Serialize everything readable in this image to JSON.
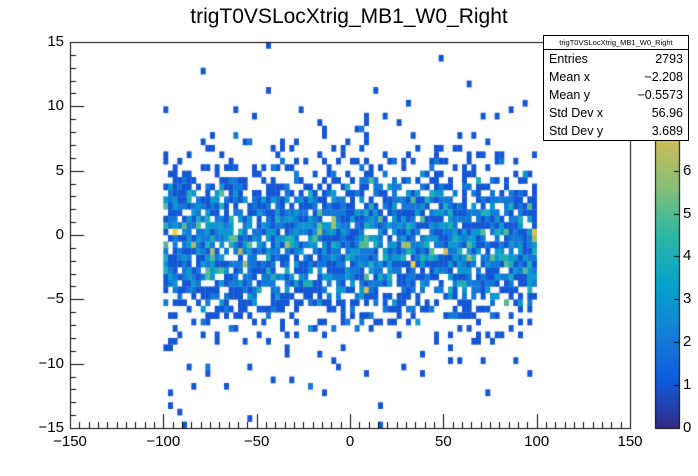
{
  "chart_data": {
    "type": "heatmap",
    "title": "trigT0VSLocXtrig_MB1_W0_Right",
    "xlim": [
      -150,
      150
    ],
    "ylim": [
      -15,
      15
    ],
    "zlim": [
      0,
      9
    ],
    "bin_width_x": 2.5,
    "bin_width_y": 0.5,
    "x_minor_step": 5,
    "x_major_step": 50,
    "y_minor_step": 1,
    "y_major_step": 5,
    "grid": false,
    "x_ticks": [
      {
        "value": -150,
        "label": "−150"
      },
      {
        "value": -100,
        "label": "−100"
      },
      {
        "value": -50,
        "label": "−50"
      },
      {
        "value": 0,
        "label": "0"
      },
      {
        "value": 50,
        "label": "50"
      },
      {
        "value": 100,
        "label": "100"
      },
      {
        "value": 150,
        "label": "150"
      }
    ],
    "y_ticks": [
      {
        "value": -15,
        "label": "−15"
      },
      {
        "value": -10,
        "label": "−10"
      },
      {
        "value": -5,
        "label": "−5"
      },
      {
        "value": 0,
        "label": "0"
      },
      {
        "value": 5,
        "label": "5"
      },
      {
        "value": 10,
        "label": "10"
      },
      {
        "value": 15,
        "label": "15"
      }
    ],
    "z_ticks": [
      {
        "value": 0,
        "label": "0"
      },
      {
        "value": 1,
        "label": "1"
      },
      {
        "value": 2,
        "label": "2"
      },
      {
        "value": 3,
        "label": "3"
      },
      {
        "value": 4,
        "label": "4"
      },
      {
        "value": 5,
        "label": "5"
      },
      {
        "value": 6,
        "label": "6"
      }
    ],
    "palette": [
      "#352a87",
      "#0f5cdd",
      "#1481d6",
      "#06a4ca",
      "#2eb7a4",
      "#87bf77",
      "#d1bb59",
      "#fec832",
      "#f9fb0e"
    ],
    "distribution": {
      "seed": 7,
      "entries": 2793,
      "x_min": -100,
      "x_max": 100,
      "y_mean": -0.5573,
      "y_sigma": 3.2,
      "outlier_fraction": 0.025,
      "outlier_y_min": -15,
      "outlier_y_max": 15
    },
    "stats": {
      "title": "trigT0VSLocXtrig_MB1_W0_Right",
      "rows": [
        {
          "label": "Entries",
          "value": "2793"
        },
        {
          "label": "Mean x",
          "value": "−2.208"
        },
        {
          "label": "Mean y",
          "value": "−0.5573"
        },
        {
          "label": "Std Dev x",
          "value": "56.96"
        },
        {
          "label": "Std Dev y",
          "value": "3.689"
        }
      ]
    }
  }
}
